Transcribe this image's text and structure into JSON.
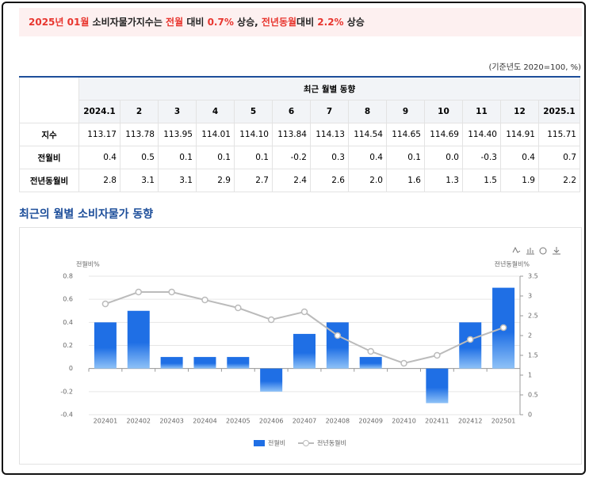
{
  "headline": [
    {
      "text": "2025년 01월",
      "color": "#e8362f"
    },
    {
      "text": " 소비자물가지수는 ",
      "color": "#222222"
    },
    {
      "text": "전월",
      "color": "#e8362f"
    },
    {
      "text": " 대비 ",
      "color": "#222222"
    },
    {
      "text": "0.7%",
      "color": "#e8362f"
    },
    {
      "text": " 상승, ",
      "color": "#222222"
    },
    {
      "text": "전년동월",
      "color": "#e8362f"
    },
    {
      "text": "대비 ",
      "color": "#222222"
    },
    {
      "text": "2.2%",
      "color": "#e8362f"
    },
    {
      "text": " 상승",
      "color": "#222222"
    }
  ],
  "table": {
    "note": "(기준년도 2020=100, %)",
    "group_header": "최근 월별 동향",
    "columns": [
      "2024.1",
      "2",
      "3",
      "4",
      "5",
      "6",
      "7",
      "8",
      "9",
      "10",
      "11",
      "12",
      "2025.1"
    ],
    "rows": [
      {
        "label": "지수",
        "cells": [
          "113.17",
          "113.78",
          "113.95",
          "114.01",
          "114.10",
          "113.84",
          "114.13",
          "114.54",
          "114.65",
          "114.69",
          "114.40",
          "114.91",
          "115.71"
        ]
      },
      {
        "label": "전월비",
        "cells": [
          "0.4",
          "0.5",
          "0.1",
          "0.1",
          "0.1",
          "-0.2",
          "0.3",
          "0.4",
          "0.1",
          "0.0",
          "-0.3",
          "0.4",
          "0.7"
        ]
      },
      {
        "label": "전년동월비",
        "cells": [
          "2.8",
          "3.1",
          "3.1",
          "2.9",
          "2.7",
          "2.4",
          "2.6",
          "2.0",
          "1.6",
          "1.3",
          "1.5",
          "1.9",
          "2.2"
        ]
      }
    ]
  },
  "chart_data": {
    "type": "bar-line",
    "title": "최근의 월별 소비자물가 동향",
    "y_label": "전월비%",
    "y2_label": "전년동월비%",
    "categories": [
      "202401",
      "202402",
      "202403",
      "202404",
      "202405",
      "202406",
      "202407",
      "202408",
      "202409",
      "202410",
      "202411",
      "202412",
      "202501"
    ],
    "series": [
      {
        "name": "전월비",
        "type": "bar",
        "color": "#1f6fe5",
        "values": [
          0.4,
          0.5,
          0.1,
          0.1,
          0.1,
          -0.2,
          0.3,
          0.4,
          0.1,
          0.0,
          -0.3,
          0.4,
          0.7
        ]
      },
      {
        "name": "전년동월비",
        "type": "line",
        "axis": "y2",
        "color": "#bbbbbb",
        "values": [
          2.8,
          3.1,
          3.1,
          2.9,
          2.7,
          2.4,
          2.6,
          2.0,
          1.6,
          1.3,
          1.5,
          1.9,
          2.2
        ]
      }
    ],
    "ylim": [
      -0.4,
      0.8
    ],
    "yticks": [
      -0.4,
      -0.2,
      0,
      0.2,
      0.4,
      0.6,
      0.8
    ],
    "y2lim": [
      0,
      3.5
    ],
    "y2ticks": [
      0,
      0.5,
      1,
      1.5,
      2,
      2.5,
      3,
      3.5
    ],
    "grid": true
  }
}
